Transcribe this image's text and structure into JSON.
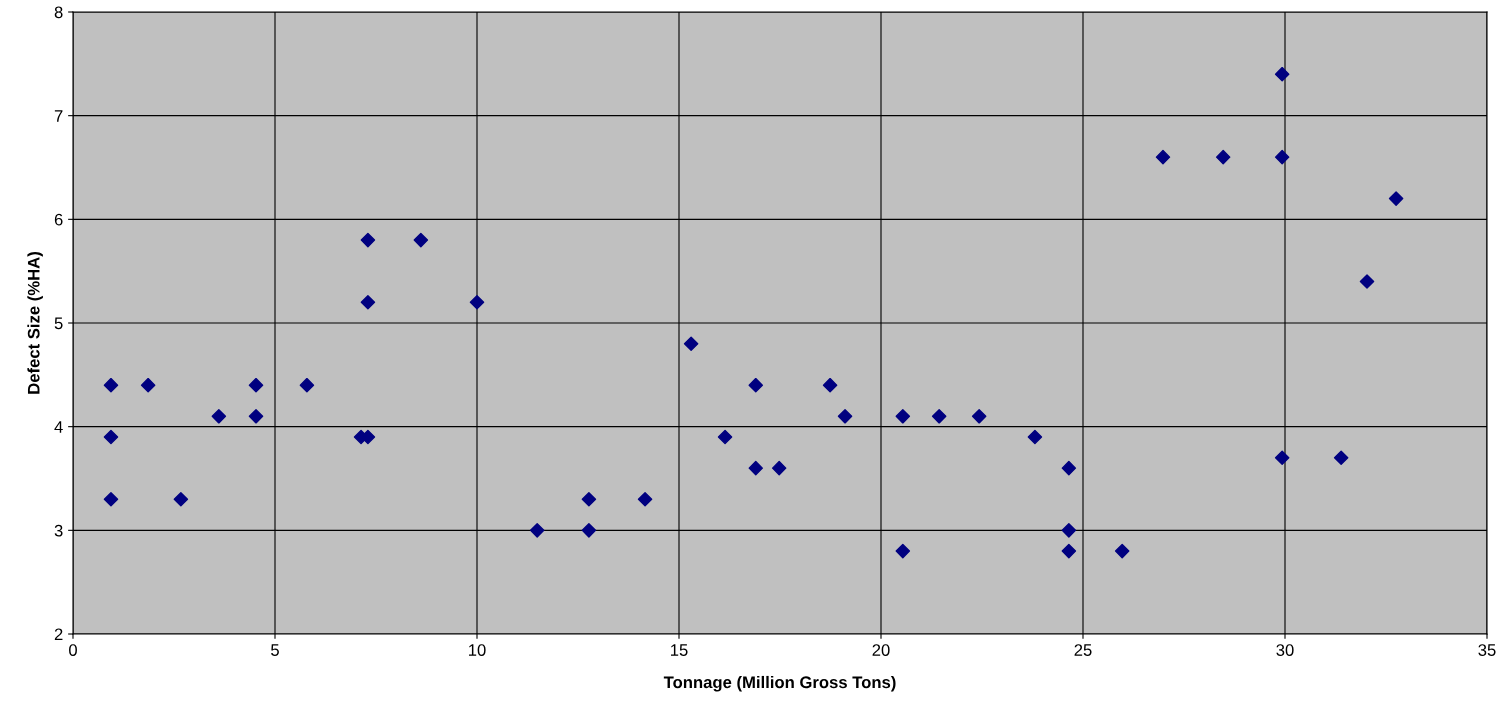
{
  "chart_data": {
    "type": "scatter",
    "xlabel": "Tonnage (Million Gross Tons)",
    "ylabel": "Defect Size (%HA)",
    "x": [
      0.94,
      0.94,
      0.94,
      1.86,
      2.67,
      3.61,
      4.53,
      4.53,
      5.79,
      7.13,
      7.3,
      7.3,
      7.3,
      8.61,
      10.0,
      11.49,
      12.77,
      12.77,
      14.16,
      15.3,
      16.14,
      16.9,
      16.9,
      17.48,
      18.74,
      19.11,
      20.54,
      20.54,
      21.44,
      22.43,
      23.81,
      24.65,
      24.65,
      24.65,
      25.97,
      26.98,
      28.47,
      29.93,
      29.93,
      29.93,
      31.39,
      32.03,
      32.75
    ],
    "series": [
      {
        "color": "#000080",
        "values": [
          4.4,
          3.9,
          3.3,
          4.4,
          3.3,
          4.1,
          4.4,
          4.1,
          4.4,
          3.9,
          3.9,
          5.8,
          5.2,
          5.8,
          5.2,
          3.0,
          3.3,
          3.0,
          3.3,
          4.8,
          3.9,
          4.4,
          3.6,
          3.6,
          4.4,
          4.1,
          4.1,
          2.8,
          4.1,
          4.1,
          3.9,
          3.6,
          3.0,
          2.8,
          2.8,
          6.6,
          6.6,
          7.4,
          6.6,
          3.7,
          3.7,
          5.4,
          6.2
        ]
      }
    ],
    "xlim": [
      0,
      35
    ],
    "xticks": [
      0,
      5,
      10,
      15,
      20,
      25,
      30,
      35
    ],
    "ylim": [
      2,
      8
    ],
    "yticks": [
      2,
      3,
      4,
      5,
      6,
      7,
      8
    ],
    "grid": true,
    "marker": "diamond"
  }
}
